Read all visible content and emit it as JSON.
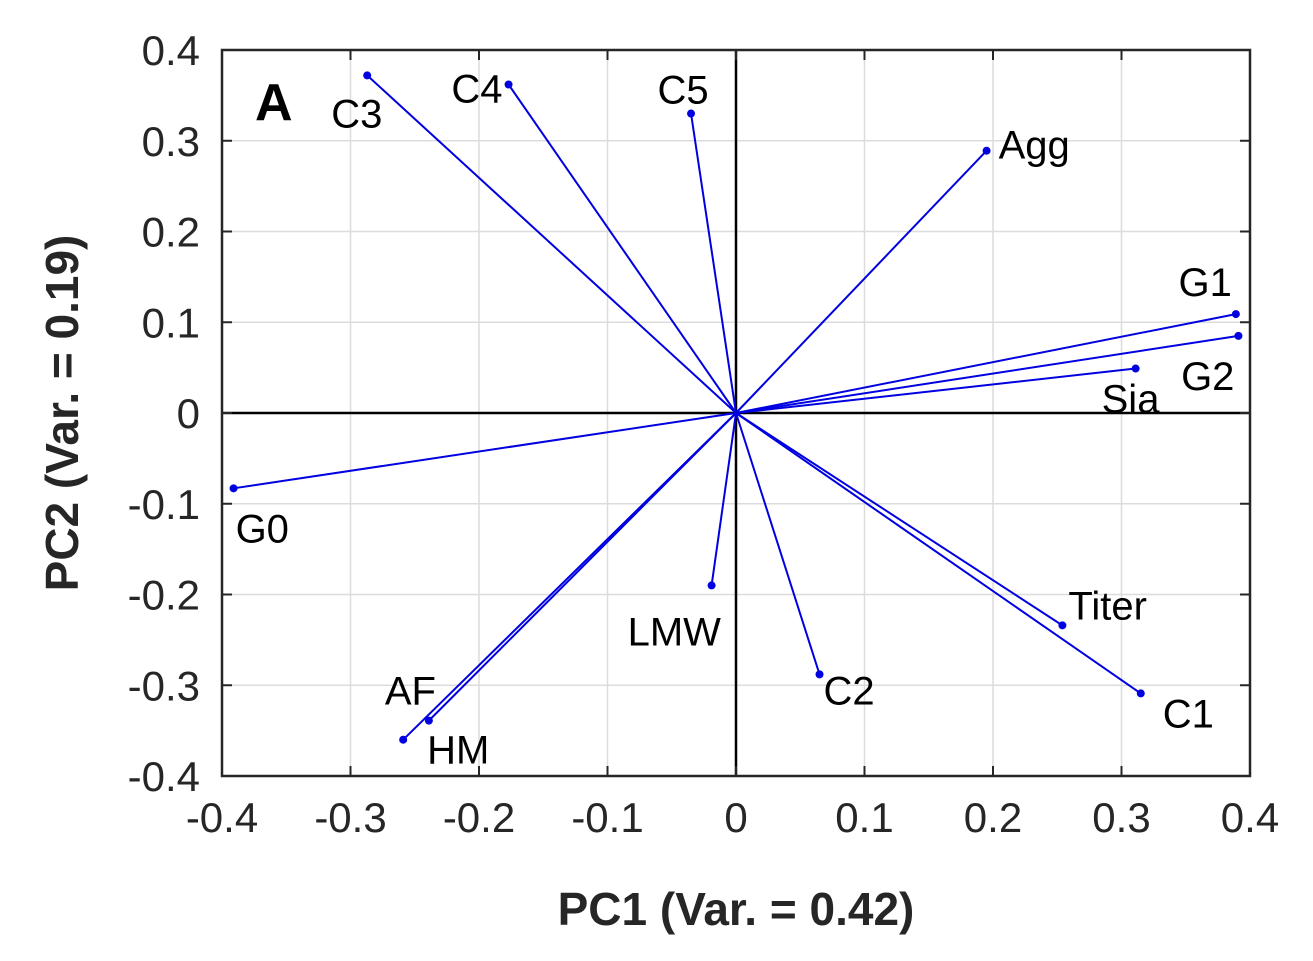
{
  "chart_data": {
    "type": "scatter",
    "subtype": "biplot-vectors",
    "panel_label": "A",
    "xlabel": "PC1 (Var. = 0.42)",
    "ylabel": "PC2 (Var. = 0.19)",
    "xlim": [
      -0.4,
      0.4
    ],
    "ylim": [
      -0.4,
      0.4
    ],
    "x_ticks": [
      "-0.4",
      "-0.3",
      "-0.2",
      "-0.1",
      "0",
      "0.1",
      "0.2",
      "0.3",
      "0.4"
    ],
    "y_ticks": [
      "0.4",
      "0.3",
      "0.2",
      "0.1",
      "0",
      "-0.1",
      "-0.2",
      "-0.3",
      "-0.4"
    ],
    "grid": true,
    "origin_lines": true,
    "vector_color": "#0000e0",
    "vectors": [
      {
        "name": "C3",
        "x": -0.287,
        "y": 0.372
      },
      {
        "name": "C4",
        "x": -0.177,
        "y": 0.362
      },
      {
        "name": "C5",
        "x": -0.035,
        "y": 0.33
      },
      {
        "name": "Agg",
        "x": 0.195,
        "y": 0.289
      },
      {
        "name": "G1",
        "x": 0.389,
        "y": 0.109
      },
      {
        "name": "G2",
        "x": 0.391,
        "y": 0.085
      },
      {
        "name": "Sia",
        "x": 0.311,
        "y": 0.049
      },
      {
        "name": "G0",
        "x": -0.391,
        "y": -0.083
      },
      {
        "name": "LMW",
        "x": -0.019,
        "y": -0.19
      },
      {
        "name": "C2",
        "x": 0.065,
        "y": -0.288
      },
      {
        "name": "Titer",
        "x": 0.254,
        "y": -0.234
      },
      {
        "name": "C1",
        "x": 0.315,
        "y": -0.309
      },
      {
        "name": "AF",
        "x": -0.239,
        "y": -0.339
      },
      {
        "name": "HM",
        "x": -0.259,
        "y": -0.36
      }
    ]
  }
}
